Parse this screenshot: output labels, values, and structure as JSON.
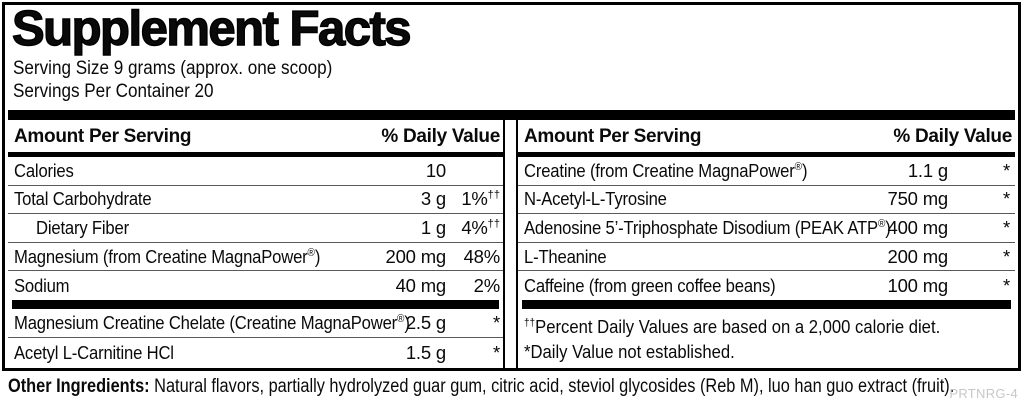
{
  "title": "Supplement Facts",
  "serving": {
    "size": "Serving Size 9 grams (approx. one scoop)",
    "per_container": "Servings Per Container 20"
  },
  "table": {
    "left": {
      "header_amount": "Amount Per Serving",
      "header_dv": "% Daily Value",
      "rows": [
        {
          "name": "Calories",
          "amount": "10",
          "dv": ""
        },
        {
          "name": "Total Carbohydrate",
          "amount": "3 g",
          "dv": "1%††"
        },
        {
          "name": "Dietary Fiber",
          "amount": "1 g",
          "dv": "4%††"
        },
        {
          "name": "Magnesium (from Creatine MagnaPower®)",
          "amount": "200 mg",
          "dv": "48%"
        },
        {
          "name": "Sodium",
          "amount": "40 mg",
          "dv": "2%"
        }
      ],
      "rows2": [
        {
          "name": "Magnesium Creatine Chelate (Creatine MagnaPower®)",
          "amount": "2.5 g",
          "dv": "*"
        },
        {
          "name": "Acetyl L-Carnitine HCl",
          "amount": "1.5 g",
          "dv": "*"
        }
      ]
    },
    "right": {
      "header_amount": "Amount Per Serving",
      "header_dv": "% Daily Value",
      "rows": [
        {
          "name": "Creatine (from Creatine MagnaPower®)",
          "amount": "1.1 g",
          "dv": "*"
        },
        {
          "name": "N-Acetyl-L-Tyrosine",
          "amount": "750 mg",
          "dv": "*"
        },
        {
          "name": "Adenosine 5’-Triphosphate Disodium (PEAK ATP®)",
          "amount": "400 mg",
          "dv": "*"
        },
        {
          "name": "L-Theanine",
          "amount": "200 mg",
          "dv": "*"
        },
        {
          "name": "Caffeine (from green coffee beans)",
          "amount": "100 mg",
          "dv": "*"
        }
      ],
      "footnotes": [
        "††Percent Daily Values are based on a 2,000 calorie diet.",
        "*Daily Value not established."
      ]
    }
  },
  "other_ingredients": {
    "label": "Other Ingredients:",
    "text": " Natural flavors, partially hydrolyzed guar gum, citric acid, steviol glycosides (Reb M), luo han guo extract (fruit)."
  },
  "footer_code": "PRTNRG-4",
  "colors": {
    "text": "#0a0a0a",
    "bar": "#000000",
    "row_separator": "#5a5a5a",
    "footer_code": "#c7c7c7"
  }
}
